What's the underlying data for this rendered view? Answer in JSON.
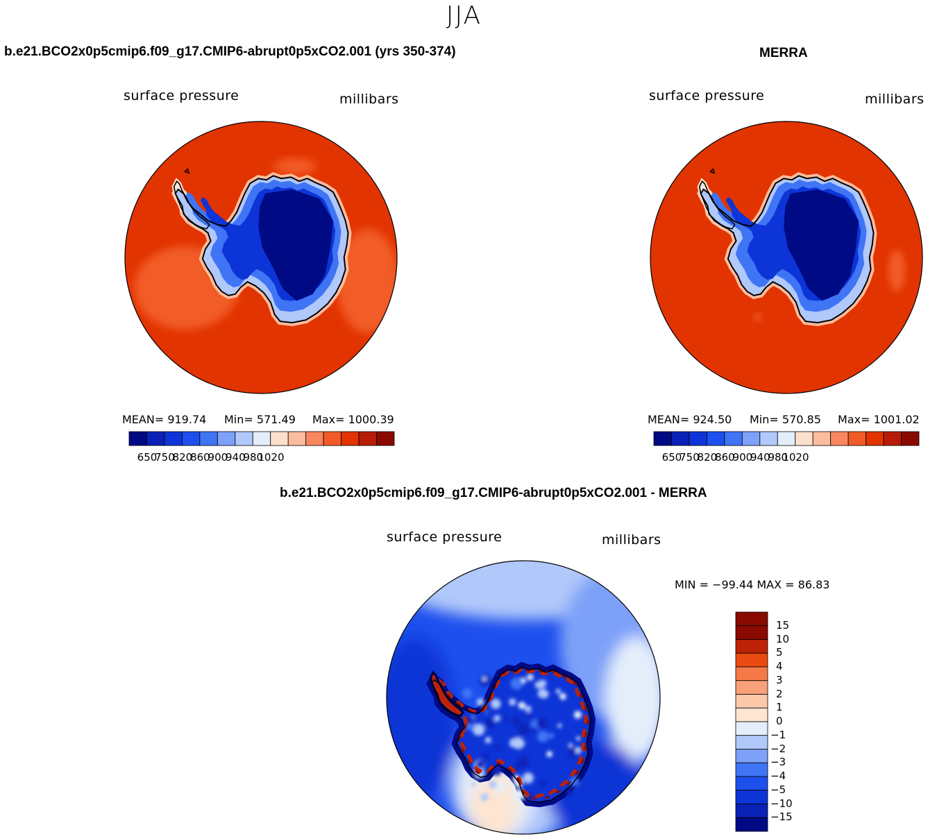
{
  "figure": {
    "season": "JJA"
  },
  "colors": {
    "ocean_model": "#e23400",
    "ocean_merra": "#e23400",
    "coast": "#000000",
    "abs_scale": [
      "#000a84",
      "#0a21b8",
      "#0d34d6",
      "#1d4fee",
      "#3f74f5",
      "#7da1f8",
      "#b0c8fa",
      "#e4eefb",
      "#fde0cc",
      "#fcbc9e",
      "#f9865e",
      "#f25b28",
      "#e23400",
      "#b81c06",
      "#8a0a00"
    ],
    "diff_scale": [
      "#000a84",
      "#0a21b8",
      "#0d34d6",
      "#1d4fee",
      "#3f74f5",
      "#7da1f8",
      "#b0c8fa",
      "#e4eefb",
      "#fde5d2",
      "#fcc8aa",
      "#f9a17a",
      "#f57a48",
      "#e84a12",
      "#bd2207",
      "#8a0a00"
    ]
  },
  "chart_data": [
    {
      "type": "heatmap",
      "projection": "south-polar-stereographic",
      "title": "b.e21.BCO2x0p5cmip6.f09_g17.CMIP6-abrupt0p5xCO2.001 (yrs 350-374)",
      "variable_label": "surface pressure",
      "units_label": "millibars",
      "stats": {
        "mean_text": "MEAN= 919.74",
        "min_text": "Min= 571.49",
        "max_text": "Max= 1000.39"
      },
      "legend_ticks": [
        "650",
        "750",
        "820",
        "860",
        "900",
        "940",
        "980",
        "1020"
      ]
    },
    {
      "type": "heatmap",
      "projection": "south-polar-stereographic",
      "title": "MERRA",
      "variable_label": "surface pressure",
      "units_label": "millibars",
      "stats": {
        "mean_text": "MEAN= 924.50",
        "min_text": "Min= 570.85",
        "max_text": "Max= 1001.02"
      },
      "legend_ticks": [
        "650",
        "750",
        "820",
        "860",
        "900",
        "940",
        "980",
        "1020"
      ]
    },
    {
      "type": "heatmap",
      "projection": "south-polar-stereographic",
      "title": "b.e21.BCO2x0p5cmip6.f09_g17.CMIP6-abrupt0p5xCO2.001 - MERRA",
      "variable_label": "surface pressure",
      "units_label": "millibars",
      "stats": {
        "minmax_text": "MIN = −99.44  MAX =   86.83"
      },
      "legend_ticks": [
        "15",
        "10",
        "5",
        "4",
        "3",
        "2",
        "1",
        "0",
        "−1",
        "−2",
        "−3",
        "−4",
        "−5",
        "−10",
        "−15"
      ]
    }
  ]
}
